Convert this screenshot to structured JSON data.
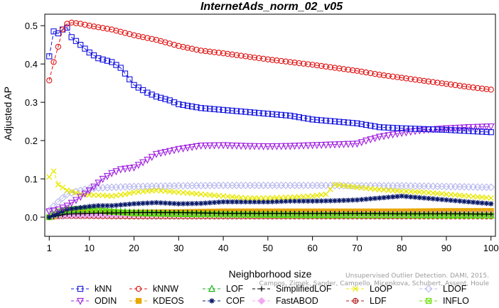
{
  "chart_data": {
    "type": "line",
    "title": "InternetAds_norm_02_v05",
    "xlabel": "Neighborhood size",
    "ylabel": "Adjusted AP",
    "xlim": [
      0,
      101
    ],
    "ylim": [
      -0.05,
      0.53
    ],
    "x_ticks": [
      1,
      10,
      20,
      30,
      40,
      50,
      60,
      70,
      80,
      90,
      100
    ],
    "y_ticks": [
      0.0,
      0.1,
      0.2,
      0.3,
      0.4,
      0.5
    ],
    "legend_position": "bottom",
    "watermark": [
      "Unsupervised Outlier Detection. DAMI, 2015.",
      "Campos, Zimek, Sander, Campello, Micenkova, Schubert, Assent, Houle"
    ],
    "series": [
      {
        "name": "kNN",
        "color": "#1414e0",
        "marker": "square",
        "dash": "5,3",
        "points": [
          [
            1,
            0.42
          ],
          [
            2,
            0.485
          ],
          [
            3,
            0.48
          ],
          [
            4,
            0.49
          ],
          [
            5,
            0.495
          ],
          [
            6,
            0.47
          ],
          [
            8,
            0.45
          ],
          [
            10,
            0.43
          ],
          [
            12,
            0.415
          ],
          [
            15,
            0.405
          ],
          [
            17,
            0.39
          ],
          [
            20,
            0.345
          ],
          [
            23,
            0.325
          ],
          [
            25,
            0.315
          ],
          [
            28,
            0.305
          ],
          [
            30,
            0.295
          ],
          [
            35,
            0.285
          ],
          [
            40,
            0.28
          ],
          [
            45,
            0.275
          ],
          [
            50,
            0.27
          ],
          [
            55,
            0.265
          ],
          [
            60,
            0.255
          ],
          [
            65,
            0.25
          ],
          [
            70,
            0.245
          ],
          [
            75,
            0.235
          ],
          [
            80,
            0.232
          ],
          [
            85,
            0.23
          ],
          [
            90,
            0.228
          ],
          [
            95,
            0.225
          ],
          [
            100,
            0.222
          ]
        ]
      },
      {
        "name": "kNNW",
        "color": "#e01414",
        "marker": "circle",
        "dash": "5,3",
        "points": [
          [
            1,
            0.357
          ],
          [
            2,
            0.405
          ],
          [
            3,
            0.445
          ],
          [
            4,
            0.49
          ],
          [
            5,
            0.505
          ],
          [
            6,
            0.508
          ],
          [
            8,
            0.505
          ],
          [
            10,
            0.5
          ],
          [
            15,
            0.49
          ],
          [
            20,
            0.475
          ],
          [
            25,
            0.463
          ],
          [
            30,
            0.447
          ],
          [
            35,
            0.435
          ],
          [
            40,
            0.428
          ],
          [
            45,
            0.42
          ],
          [
            50,
            0.412
          ],
          [
            55,
            0.405
          ],
          [
            60,
            0.398
          ],
          [
            65,
            0.39
          ],
          [
            70,
            0.382
          ],
          [
            75,
            0.372
          ],
          [
            80,
            0.364
          ],
          [
            85,
            0.356
          ],
          [
            90,
            0.348
          ],
          [
            95,
            0.34
          ],
          [
            100,
            0.333
          ]
        ]
      },
      {
        "name": "LOF",
        "color": "#10b010",
        "marker": "triangle-up",
        "dash": "5,3",
        "points": [
          [
            1,
            0.002
          ],
          [
            3,
            0.012
          ],
          [
            5,
            0.018
          ],
          [
            8,
            0.02
          ],
          [
            10,
            0.02
          ],
          [
            15,
            0.015
          ],
          [
            20,
            0.012
          ],
          [
            30,
            0.01
          ],
          [
            40,
            0.008
          ],
          [
            50,
            0.008
          ],
          [
            60,
            0.007
          ],
          [
            70,
            0.006
          ],
          [
            80,
            0.006
          ],
          [
            90,
            0.006
          ],
          [
            100,
            0.005
          ]
        ]
      },
      {
        "name": "SimplifiedLOF",
        "color": "#000000",
        "marker": "plus",
        "dash": "5,3",
        "points": [
          [
            1,
            0.0
          ],
          [
            5,
            0.008
          ],
          [
            10,
            0.01
          ],
          [
            20,
            0.012
          ],
          [
            30,
            0.012
          ],
          [
            40,
            0.01
          ],
          [
            50,
            0.01
          ],
          [
            60,
            0.01
          ],
          [
            70,
            0.01
          ],
          [
            80,
            0.009
          ],
          [
            90,
            0.009
          ],
          [
            100,
            0.008
          ]
        ]
      },
      {
        "name": "LoOP",
        "color": "#e8e800",
        "marker": "x",
        "dash": "5,3",
        "points": [
          [
            1,
            0.105
          ],
          [
            2,
            0.12
          ],
          [
            3,
            0.085
          ],
          [
            5,
            0.07
          ],
          [
            8,
            0.06
          ],
          [
            10,
            0.058
          ],
          [
            13,
            0.057
          ],
          [
            15,
            0.055
          ],
          [
            18,
            0.06
          ],
          [
            20,
            0.065
          ],
          [
            25,
            0.07
          ],
          [
            30,
            0.065
          ],
          [
            35,
            0.06
          ],
          [
            40,
            0.055
          ],
          [
            45,
            0.05
          ],
          [
            50,
            0.05
          ],
          [
            55,
            0.052
          ],
          [
            60,
            0.055
          ],
          [
            63,
            0.06
          ],
          [
            65,
            0.085
          ],
          [
            70,
            0.078
          ],
          [
            75,
            0.072
          ],
          [
            80,
            0.068
          ],
          [
            85,
            0.065
          ],
          [
            90,
            0.06
          ],
          [
            95,
            0.055
          ],
          [
            100,
            0.05
          ]
        ]
      },
      {
        "name": "LDOF",
        "color": "#b8b8ee",
        "marker": "diamond",
        "dash": "5,3",
        "points": [
          [
            1,
            0.018
          ],
          [
            3,
            0.04
          ],
          [
            5,
            0.06
          ],
          [
            8,
            0.07
          ],
          [
            10,
            0.075
          ],
          [
            15,
            0.078
          ],
          [
            20,
            0.08
          ],
          [
            30,
            0.082
          ],
          [
            40,
            0.083
          ],
          [
            50,
            0.083
          ],
          [
            60,
            0.083
          ],
          [
            70,
            0.082
          ],
          [
            80,
            0.082
          ],
          [
            90,
            0.08
          ],
          [
            100,
            0.078
          ]
        ]
      },
      {
        "name": "ODIN",
        "color": "#a020e0",
        "marker": "triangle-down",
        "dash": "5,3",
        "points": [
          [
            1,
            0.015
          ],
          [
            3,
            0.02
          ],
          [
            5,
            0.03
          ],
          [
            7,
            0.045
          ],
          [
            10,
            0.07
          ],
          [
            13,
            0.1
          ],
          [
            15,
            0.115
          ],
          [
            17,
            0.125
          ],
          [
            20,
            0.13
          ],
          [
            23,
            0.15
          ],
          [
            25,
            0.165
          ],
          [
            30,
            0.178
          ],
          [
            35,
            0.187
          ],
          [
            40,
            0.188
          ],
          [
            45,
            0.186
          ],
          [
            50,
            0.185
          ],
          [
            55,
            0.186
          ],
          [
            60,
            0.188
          ],
          [
            65,
            0.19
          ],
          [
            70,
            0.192
          ],
          [
            72,
            0.2
          ],
          [
            75,
            0.21
          ],
          [
            80,
            0.22
          ],
          [
            85,
            0.228
          ],
          [
            90,
            0.232
          ],
          [
            95,
            0.235
          ],
          [
            100,
            0.237
          ]
        ]
      },
      {
        "name": "KDEOS",
        "color": "#e8a800",
        "marker": "square-filled",
        "dash": "5,3",
        "points": [
          [
            1,
            0.0
          ],
          [
            5,
            0.01
          ],
          [
            10,
            0.012
          ],
          [
            20,
            0.012
          ],
          [
            30,
            0.013
          ],
          [
            40,
            0.015
          ],
          [
            50,
            0.015
          ],
          [
            60,
            0.015
          ],
          [
            70,
            0.015
          ],
          [
            80,
            0.015
          ],
          [
            90,
            0.016
          ],
          [
            100,
            0.016
          ]
        ]
      },
      {
        "name": "COF",
        "color": "#0a1a6a",
        "marker": "star",
        "dash": "5,3",
        "points": [
          [
            1,
            0.0
          ],
          [
            3,
            0.01
          ],
          [
            5,
            0.02
          ],
          [
            8,
            0.025
          ],
          [
            10,
            0.028
          ],
          [
            12,
            0.03
          ],
          [
            15,
            0.03
          ],
          [
            20,
            0.035
          ],
          [
            25,
            0.038
          ],
          [
            30,
            0.035
          ],
          [
            35,
            0.036
          ],
          [
            40,
            0.04
          ],
          [
            45,
            0.04
          ],
          [
            50,
            0.04
          ],
          [
            55,
            0.042
          ],
          [
            60,
            0.042
          ],
          [
            65,
            0.043
          ],
          [
            70,
            0.045
          ],
          [
            75,
            0.05
          ],
          [
            80,
            0.055
          ],
          [
            85,
            0.05
          ],
          [
            90,
            0.045
          ],
          [
            95,
            0.04
          ],
          [
            100,
            0.035
          ]
        ]
      },
      {
        "name": "FastABOD",
        "color": "#f0a8f0",
        "marker": "diamond-filled",
        "dash": "5,3",
        "points": [
          [
            1,
            0.003
          ],
          [
            5,
            0.005
          ],
          [
            10,
            0.006
          ],
          [
            20,
            0.007
          ],
          [
            30,
            0.007
          ],
          [
            40,
            0.008
          ],
          [
            50,
            0.008
          ],
          [
            60,
            0.008
          ],
          [
            70,
            0.008
          ],
          [
            80,
            0.008
          ],
          [
            90,
            0.008
          ],
          [
            100,
            0.008
          ]
        ]
      },
      {
        "name": "LDF",
        "color": "#b01818",
        "marker": "circle-plus",
        "dash": "5,3",
        "points": [
          [
            1,
            0.0
          ],
          [
            3,
            0.002
          ],
          [
            5,
            0.003
          ],
          [
            10,
            0.003
          ],
          [
            20,
            0.002
          ],
          [
            30,
            0.002
          ],
          [
            40,
            0.002
          ],
          [
            50,
            0.002
          ],
          [
            60,
            0.002
          ],
          [
            70,
            0.002
          ],
          [
            80,
            0.002
          ],
          [
            90,
            0.002
          ],
          [
            100,
            0.002
          ]
        ]
      },
      {
        "name": "INFLO",
        "color": "#70e010",
        "marker": "square-x",
        "dash": "5,3",
        "points": [
          [
            1,
            0.0
          ],
          [
            3,
            0.015
          ],
          [
            5,
            0.02
          ],
          [
            8,
            0.022
          ],
          [
            10,
            0.02
          ],
          [
            15,
            0.014
          ],
          [
            20,
            0.01
          ],
          [
            30,
            0.008
          ],
          [
            40,
            0.007
          ],
          [
            50,
            0.006
          ],
          [
            60,
            0.005
          ],
          [
            70,
            0.005
          ],
          [
            80,
            0.005
          ],
          [
            90,
            0.004
          ],
          [
            100,
            0.004
          ]
        ]
      }
    ],
    "legend_rows": [
      [
        "kNN",
        "kNNW",
        "LOF",
        "SimplifiedLOF",
        "LoOP",
        "LDOF"
      ],
      [
        "ODIN",
        "KDEOS",
        "COF",
        "FastABOD",
        "LDF",
        "INFLO"
      ]
    ]
  }
}
